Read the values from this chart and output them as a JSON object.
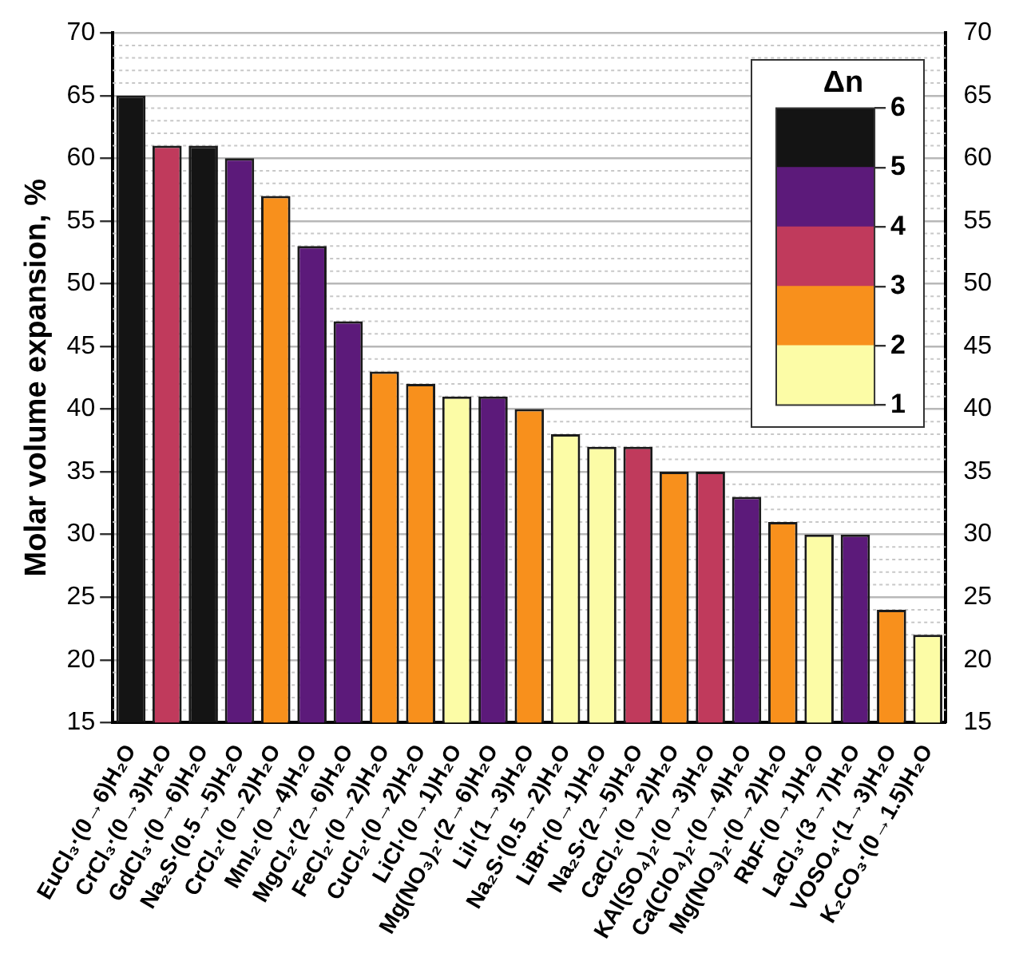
{
  "chart_data": [
    {
      "type": "bar",
      "ylabel": "Molar volume expansion, %",
      "categories": [
        "EuCl₃·(0→6)H₂O",
        "CrCl₃·(0→3)H₂O",
        "GdCl₃·(0→6)H₂O",
        "Na₂S·(0.5→5)H₂O",
        "CrCl₂·(0→2)H₂O",
        "MnI₂·(0→4)H₂O",
        "MgCl₂·(2→6)H₂O",
        "FeCl₂·(0→2)H₂O",
        "CuCl₂·(0→2)H₂O",
        "LiCl·(0→1)H₂O",
        "Mg(NO₃)₂·(2→6)H₂O",
        "LiI·(1→3)H₂O",
        "Na₂S·(0.5→2)H₂O",
        "LiBr·(0→1)H₂O",
        "Na₂S·(2→5)H₂O",
        "CaCl₂·(0→2)H₂O",
        "KAl(SO₄)₂·(0→3)H₂O",
        "Ca(ClO₄)₂·(0→4)H₂O",
        "Mg(NO₃)₂·(0→2)H₂O",
        "RbF·(0→1)H₂O",
        "LaCl₃·(3→7)H₂O",
        "VOSO₄·(1→3)H₂O",
        "K₂CO₃·(0→1.5)H₂O"
      ],
      "values": [
        65,
        61,
        61,
        60,
        57,
        53,
        47,
        43,
        42,
        41,
        41,
        40,
        38,
        37,
        37,
        35,
        35,
        33,
        31,
        30,
        30,
        24,
        22
      ],
      "colors": [
        "#141414",
        "#c03a5c",
        "#141414",
        "#5c1a7a",
        "#f8901c",
        "#5c1a7a",
        "#5c1a7a",
        "#f8901c",
        "#f8901c",
        "#fcfca6",
        "#5c1a7a",
        "#f8901c",
        "#fcfca6",
        "#fcfca6",
        "#c03a5c",
        "#f8901c",
        "#c03a5c",
        "#5c1a7a",
        "#f8901c",
        "#fcfca6",
        "#5c1a7a",
        "#f8901c",
        "#fcfca6"
      ],
      "ylim": [
        15,
        70
      ],
      "yticks": [
        15,
        20,
        25,
        30,
        35,
        40,
        45,
        50,
        55,
        60,
        65,
        70
      ],
      "y2lim": [
        15,
        70
      ],
      "y2ticks": [
        15,
        20,
        25,
        30,
        35,
        40,
        45,
        50,
        55,
        60,
        65,
        70
      ],
      "grid": "y"
    },
    {
      "type": "bar",
      "title": "Δn",
      "stacked": true,
      "categories": [
        null
      ],
      "series": [
        {
          "color": "#fcfca6",
          "values": [
            2
          ]
        },
        {
          "color": "#f8901c",
          "values": [
            1
          ]
        },
        {
          "color": "#c03a5c",
          "values": [
            1
          ]
        },
        {
          "color": "#5c1a7a",
          "values": [
            1
          ]
        },
        {
          "color": "#141414",
          "values": [
            1
          ]
        }
      ],
      "ylim": [
        1,
        6
      ],
      "yticks": [
        1,
        2,
        3,
        4,
        5,
        6
      ],
      "tick_labels": "y"
    }
  ]
}
